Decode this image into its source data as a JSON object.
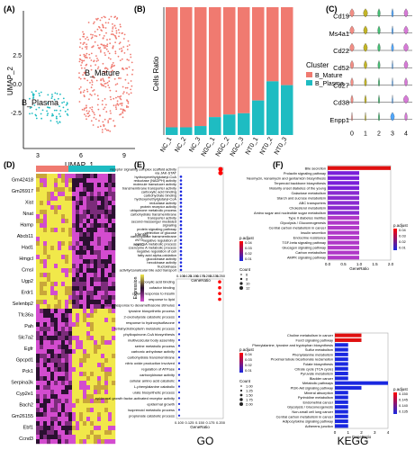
{
  "panels": {
    "a": "(A)",
    "b": "(B)",
    "c": "(C)",
    "d": "(D)",
    "e": "(E)",
    "f": "(F)"
  },
  "colors": {
    "mature": "#f07a70",
    "plasma": "#1ebcc2",
    "heat_low": "#d34ccf",
    "heat_high": "#f1e84a",
    "heat_mid": "#2a1030",
    "go_red": "#ff0000",
    "go_blue": "#1a28e0"
  },
  "umap": {
    "xlabel": "UMAP_1",
    "ylabel": "UMAP_2",
    "xticks": [
      "3",
      "6",
      "9"
    ],
    "yticks": [
      "2.5",
      "0.0",
      "-2.5"
    ],
    "clusters": [
      "B_Mature",
      "B_Plasma"
    ]
  },
  "chart_data": [
    {
      "type": "bar",
      "panel": "B",
      "stacked": true,
      "ylabel": "Cells Ratio",
      "categories": [
        "NC_1",
        "NC_2",
        "NC_3",
        "NGC_1",
        "NGC_2",
        "NGC_3",
        "NT0_1",
        "NT0_2",
        "NT0_3"
      ],
      "series": [
        {
          "name": "B_Mature",
          "values": [
            0.94,
            0.94,
            0.93,
            0.86,
            0.84,
            0.83,
            0.73,
            0.58,
            0.61
          ]
        },
        {
          "name": "B_Plasma",
          "values": [
            0.06,
            0.06,
            0.07,
            0.14,
            0.16,
            0.17,
            0.27,
            0.42,
            0.39
          ]
        }
      ],
      "legend_title": "Cluster",
      "legend": "right"
    },
    {
      "type": "violin",
      "panel": "C",
      "genes": [
        "Cd19",
        "Ms4a1",
        "Cd22",
        "Cd52",
        "Cd27",
        "Cd38",
        "Enpp1"
      ],
      "groups": [
        "0",
        "1",
        "2",
        "3",
        "4"
      ]
    },
    {
      "type": "heatmap",
      "panel": "D",
      "genes": [
        "Gm42418",
        "Gm26917",
        "Xist",
        "Nnat",
        "Hamp",
        "Abcb11",
        "Had1",
        "Hmgcl",
        "Crnsl",
        "Ugp2",
        "Erdr1",
        "Selenbp2",
        "Tfc36a",
        "Pah",
        "Slc7a2",
        "Egfr",
        "Gpcpd1",
        "Pck1",
        "Serpina3k",
        "Cyp2e1",
        "Bach2",
        "Gm26155",
        "Ebf1",
        "Ccnd3"
      ],
      "column_groups": [
        "B_Mature",
        "B_Plasma"
      ]
    },
    {
      "type": "scatter",
      "panel": "E",
      "subtitle": "GO",
      "xlabel": "GeneRatio",
      "xticks": [
        "0.100",
        "0.125",
        "0.150",
        "0.175",
        "0.200"
      ],
      "xticks_top": [
        "0.100",
        "0.125",
        "0.150",
        "0.175",
        "0.200",
        "0.225",
        "0.250"
      ],
      "top_terms": [
        "receptor signaling complex scaffold activity",
        "via JAK-STAT",
        "hydroxymethylglutaryl-CoA",
        "reductase (NADPH) activity",
        "molecule transducer activity",
        "transmembrane transporter activity",
        "carboxylic acid binding",
        "carbohydrate binding",
        "hydroxymethylglutaryl-CoA",
        "reductase activity",
        "protein receptor activity",
        "ubiquinone metabolic process",
        "carbohydrate transmembrane",
        "transporter activity",
        "second-messenger mediated",
        "signaling",
        "protein signaling pathway",
        "detection of glucose",
        "carbohydrate transmembrane",
        "negative regulation of",
        "acyl-CoA metabolic process",
        "coenzyme A metabolic process",
        "negative regulation of cell",
        "fatty acid alpha-oxidation",
        "glucokinase activity",
        "hexokinase activity",
        "fructokinase",
        "activity/canalicular bile acid transport"
      ],
      "bottom_terms": [
        "carboxylic acid binding",
        "cofactor binding",
        "cellular response to insulin",
        "response to lipid",
        "cellular response to dexamethasone stimulus",
        "tyrosine biosynthetic process",
        "2-oxobutyrate catabolic process",
        "response to hydroxyisoflavone",
        "tetrahydrobiopterin metabolic process",
        "phylloquinone-CoA biosynthesis",
        "multivesicular body assembly",
        "serine metabolic process",
        "carbonic anhydrase activity",
        "carbohydrate transmembrane",
        "nitric oxide production involved",
        "regulation of ATPase",
        "carboxykinase activity",
        "cellular amino acid catabolic",
        "L-phenylalanine catabolic",
        "urate biosynthetic process",
        "epidermal growth factor-activated receptor activity",
        "epidermal growth",
        "isoprenoid metabolic process",
        "propionate catabolic process"
      ],
      "legend_padj_top": [
        "0.04",
        "0.03",
        "0.02",
        "0.01"
      ],
      "legend_count_top": [
        "6",
        "8",
        "10",
        "12"
      ],
      "legend_identity": [
        "NT0",
        "NGC"
      ],
      "legend_padj_bottom": [
        "0.04",
        "0.03",
        "0.02",
        "0.01"
      ],
      "legend_count_bottom": [
        "1.00",
        "1.25",
        "1.50",
        "1.75",
        "2.00"
      ],
      "legend_expression": "Expression"
    },
    {
      "type": "bar",
      "panel": "F",
      "subtitle": "KEGG",
      "xlabel": "GeneRatio",
      "top_terms": [
        "Bile secretion",
        "Prolactin signaling pathway",
        "Neomycin, kanamycin and gentamicin biosynthesis",
        "Terpenoid backbone biosynthesis",
        "Maturity onset diabetes of the young",
        "Galactose metabolism",
        "Starch and sucrose metabolism",
        "ABC transporters",
        "Cholesterol metabolism",
        "Amino sugar and nucleotide sugar metabolism",
        "Type II diabetes mellitus",
        "Glycolysis / Gluconeogenesis",
        "Central carbon metabolism in cancer",
        "Insulin secretion",
        "Endocrine resistance",
        "TGF-beta signaling pathway",
        "Glucagon signaling pathway",
        "Carbon metabolism",
        "AMPK signaling pathway"
      ],
      "top_values": [
        2.0,
        1.0,
        1.0,
        1.0,
        1.0,
        1.0,
        1.0,
        1.0,
        1.0,
        1.0,
        1.0,
        1.0,
        1.0,
        1.0,
        1.0,
        1.0,
        1.0,
        1.0,
        1.0
      ],
      "top_xticks": [
        "0.0",
        "0.5",
        "1.0",
        "1.5",
        "2.0"
      ],
      "bottom_terms": [
        "Choline metabolism in cancer",
        "FoxO signaling pathway",
        "Phenylalanine, tyrosine and tryptophan biosynthesis",
        "Sulfur metabolism",
        "Phenylalanine metabolism",
        "Proximal tubule bicarbonate reclamation",
        "Folate biosynthesis",
        "Citrate cycle (TCA cycle)",
        "Pyruvate metabolism",
        "Bladder cancer",
        "Metabolic pathways",
        "PI3K-Akt signaling pathway",
        "Mineral absorption",
        "Pyrimidine metabolism",
        "Endometrial cancer",
        "Glycolysis / Gluconeogenesis",
        "Non-small cell lung cancer",
        "Central carbon metabolism in cancer",
        "Adipocytokine signaling pathway",
        "Adherens junction"
      ],
      "bottom_values": [
        2,
        2,
        1,
        1,
        1,
        1,
        1,
        1,
        1,
        1,
        4,
        2,
        1,
        1,
        1,
        1,
        1,
        1,
        1,
        1
      ],
      "bottom_xticks": [
        "0",
        "1",
        "2",
        "3",
        "4"
      ],
      "legend_padj_top": [
        "0.04",
        "0.03",
        "0.02",
        "0.01"
      ],
      "legend_padj_bottom": [
        "0.150",
        "0.145",
        "0.140",
        "0.135"
      ],
      "legend_padj_title": "p.adjust"
    }
  ]
}
